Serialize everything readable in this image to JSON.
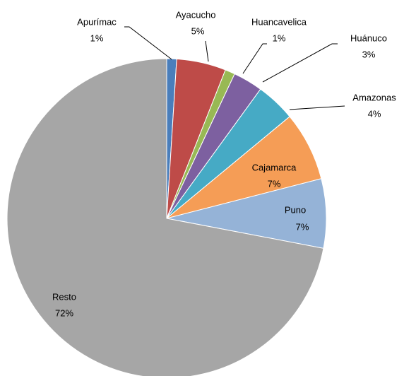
{
  "chart_data": {
    "type": "pie",
    "categories": [
      "Apurímac",
      "Ayacucho",
      "Huancavelica",
      "Huánuco",
      "Amazonas",
      "Cajamarca",
      "Puno",
      "Resto"
    ],
    "values": [
      1,
      5,
      1,
      3,
      4,
      7,
      7,
      72
    ],
    "value_labels": [
      "1%",
      "5%",
      "1%",
      "3%",
      "4%",
      "7%",
      "7%",
      "72%"
    ],
    "colors": [
      "#4a7ebb",
      "#be4b48",
      "#98b954",
      "#7d60a0",
      "#46aac5",
      "#f59d56",
      "#95b3d7",
      "#a6a6a6"
    ]
  }
}
